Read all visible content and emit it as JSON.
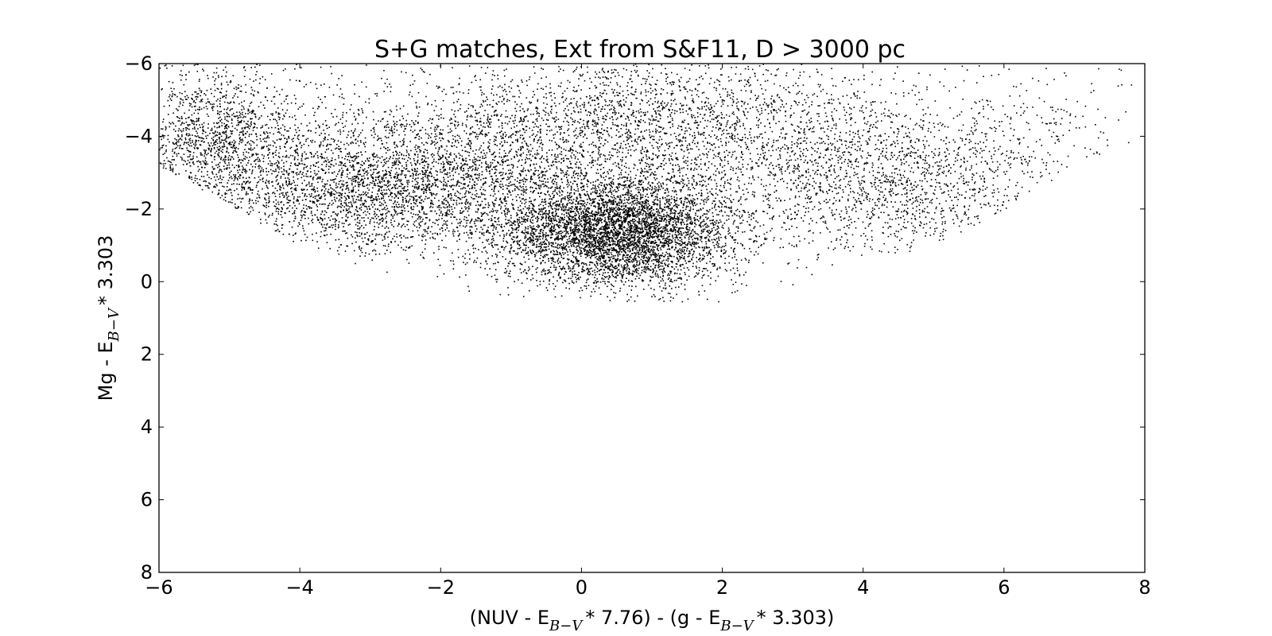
{
  "chart_data": {
    "type": "scatter",
    "title": "S+G matches, Ext from S&F11, D > 3000 pc",
    "xlabel": {
      "parts": [
        "(NUV - E",
        "B−V",
        "* 7.76) - (g - E",
        "B−V",
        "* 3.303)"
      ]
    },
    "ylabel": {
      "parts": [
        "Mg - E",
        "B−V",
        "* 3.303"
      ]
    },
    "xlim": [
      -6,
      8
    ],
    "ylim": [
      8,
      -6
    ],
    "y_inverted": true,
    "xticks": [
      -6,
      -4,
      -2,
      0,
      2,
      4,
      6,
      8
    ],
    "yticks": [
      -6,
      -4,
      -2,
      0,
      2,
      4,
      6,
      8
    ],
    "xtick_labels": [
      "−6",
      "−4",
      "−2",
      "0",
      "2",
      "4",
      "6",
      "8"
    ],
    "ytick_labels": [
      "−6",
      "−4",
      "−2",
      "0",
      "2",
      "4",
      "6",
      "8"
    ],
    "grid": false,
    "marker_color": "#000000",
    "series": [
      {
        "clusters": [
          {
            "x": 0.5,
            "y": -1.4,
            "sx": 0.85,
            "sy": 0.75,
            "n": 5200
          },
          {
            "x": -2.8,
            "y": -2.6,
            "sx": 1.3,
            "sy": 0.9,
            "n": 3200
          },
          {
            "x": -5.2,
            "y": -4.0,
            "sx": 0.6,
            "sy": 1.0,
            "n": 1400
          },
          {
            "x": 4.5,
            "y": -2.6,
            "sx": 1.2,
            "sy": 1.0,
            "n": 1500
          },
          {
            "x": 0.8,
            "y": -4.2,
            "sx": 2.2,
            "sy": 1.1,
            "n": 3600
          },
          {
            "x": 6.5,
            "y": -4.3,
            "sx": 0.8,
            "sy": 0.8,
            "n": 150
          }
        ],
        "envelope": {
          "lower_edge": [
            [
              -6,
              -3.2
            ],
            [
              -4,
              -1.0
            ],
            [
              -2,
              0.3
            ],
            [
              0,
              0.5
            ],
            [
              2,
              0.6
            ],
            [
              3,
              0.2
            ],
            [
              4,
              -0.5
            ],
            [
              5,
              -1.0
            ],
            [
              6,
              -2.0
            ],
            [
              7,
              -3.2
            ],
            [
              8,
              -4.0
            ]
          ],
          "upper_edge": -6
        }
      }
    ]
  }
}
